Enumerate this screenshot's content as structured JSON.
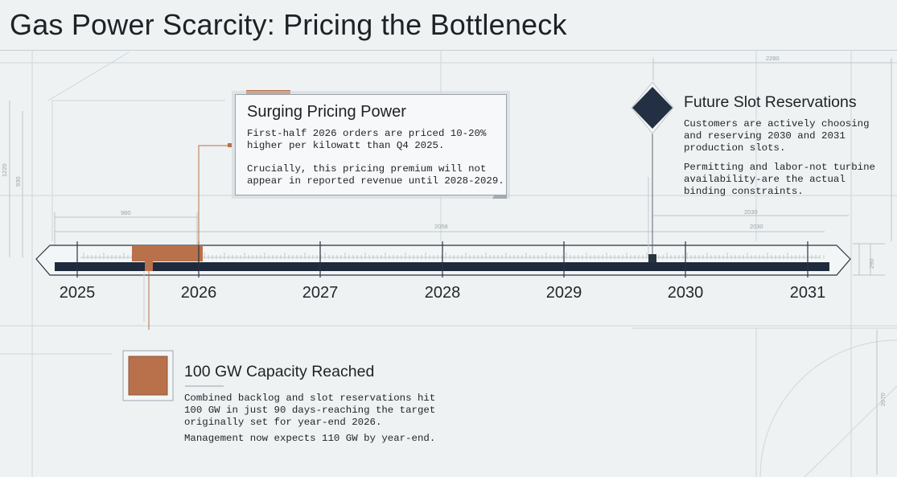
{
  "title": "Gas Power Scarcity: Pricing the Bottleneck",
  "timeline": {
    "years": [
      "2025",
      "2026",
      "2027",
      "2028",
      "2029",
      "2030",
      "2031"
    ],
    "dimensions": {
      "top_right": "2280",
      "left_outer": "1220",
      "left_inner": "930",
      "left_span": "980",
      "mid_span": "2058",
      "right_span_outer": "2030",
      "right_span_inner": "2030",
      "bar_height": "290",
      "lower_right": "2070"
    }
  },
  "events": {
    "pricing": {
      "title": "Surging Pricing Power",
      "p1": [
        "First-half 2026 orders are priced 10-20%",
        "higher per kilowatt than Q4 2025."
      ],
      "p2": [
        "Crucially, this pricing premium will not",
        "appear in reported revenue until 2028-2029."
      ]
    },
    "reservations": {
      "title": "Future Slot Reservations",
      "p1": [
        "Customers are actively choosing",
        "and reserving 2030 and 2031",
        "production slots."
      ],
      "p2": [
        "Permitting and labor-not turbine",
        "availability-are the actual",
        "binding constraints."
      ]
    },
    "capacity": {
      "title": "100 GW Capacity Reached",
      "p1": [
        "Combined backlog and slot reservations hit",
        "100 GW in just 90 days-reaching the target",
        "originally set for year-end 2026."
      ],
      "p2": [
        "Management now expects 110 GW by year-end."
      ]
    }
  },
  "colors": {
    "accent": "#b8714a",
    "navy": "#1f2a3c",
    "background": "#eef2f3"
  }
}
